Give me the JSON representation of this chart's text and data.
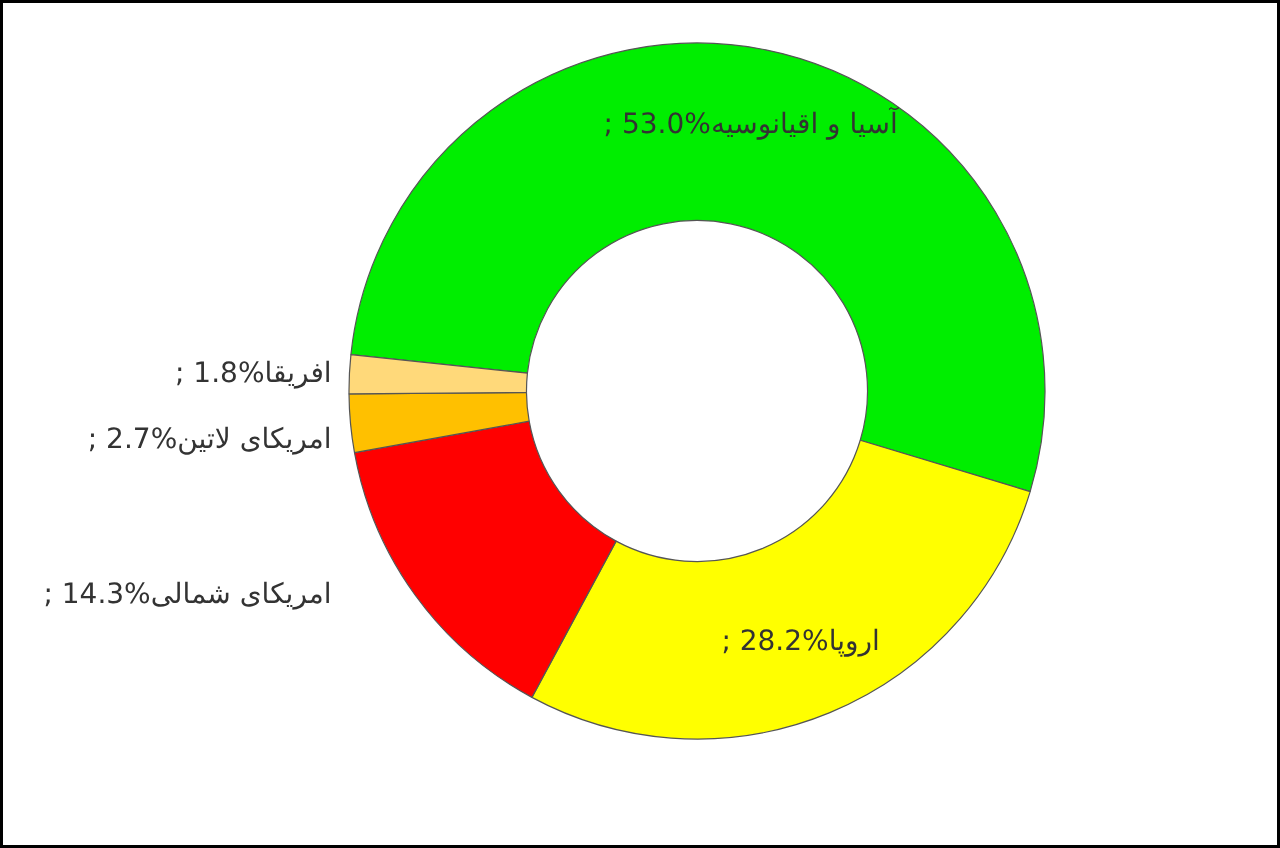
{
  "chart_data": {
    "type": "donut",
    "categories": [
      "آسیا و اقیانوسیه",
      "اروپا",
      "امریکای شمالی",
      "امریکای لاتین",
      "افریقا"
    ],
    "values": [
      53.0,
      28.2,
      14.3,
      2.7,
      1.8
    ],
    "value_labels": [
      "; 53.0%",
      "; 28.2%",
      "; 14.3%",
      "; 2.7%",
      "; 1.8%"
    ],
    "colors": [
      "#00ee00",
      "#ffff00",
      "#ff0000",
      "#ffc000",
      "#ffd97a"
    ]
  }
}
